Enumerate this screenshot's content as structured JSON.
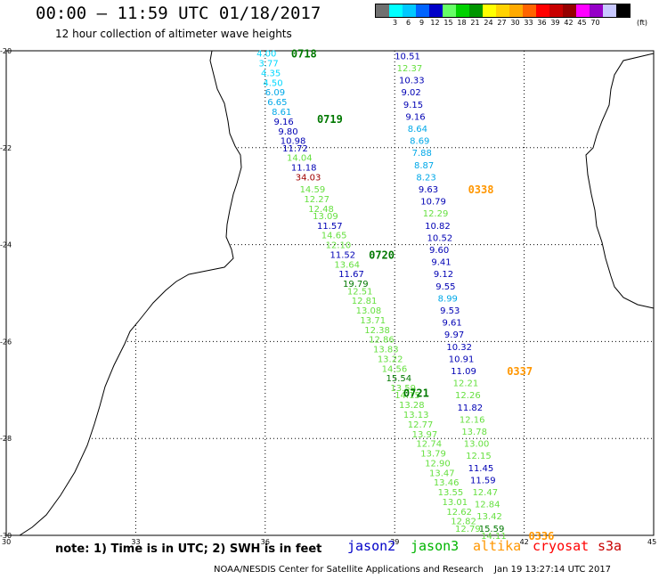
{
  "header": {
    "title": "00:00 — 11:59 UTC 01/18/2017",
    "subtitle": "12 hour collection of altimeter wave heights"
  },
  "colorbar": {
    "colors": [
      "#707070",
      "#00ffff",
      "#00c8ff",
      "#0064ff",
      "#0000c8",
      "#66ff66",
      "#00d200",
      "#009600",
      "#ffff00",
      "#ffd200",
      "#ffaa00",
      "#ff6400",
      "#ff0000",
      "#c80000",
      "#960000",
      "#ff00ff",
      "#9600c8",
      "#c8c8ff",
      "#000000"
    ],
    "labels": [
      "3",
      "6",
      "9",
      "12",
      "15",
      "18",
      "21",
      "24",
      "27",
      "30",
      "33",
      "36",
      "39",
      "42",
      "45",
      "70"
    ],
    "unit": "(ft)"
  },
  "map": {
    "y_labels": [
      "-20",
      "-22",
      "-24",
      "-26",
      "-28",
      "-30"
    ],
    "x_labels": [
      "30",
      "33",
      "36",
      "39",
      "42",
      "45"
    ]
  },
  "chart_data": {
    "type": "scatter",
    "title": "00:00 — 11:59 UTC 01/18/2017",
    "subtitle": "12 hour collection of altimeter wave heights",
    "xlabel": "",
    "ylabel": "",
    "xlim": [
      30,
      45
    ],
    "ylim": [
      -30,
      -20
    ],
    "unit": "ft",
    "colors": {
      "cyan": "#00d8ff",
      "sky": "#00a8e8",
      "navy": "#0000b4",
      "lime": "#66e040",
      "darkred": "#a00000",
      "time_green": "#007800",
      "time_orange": "#ff9600"
    },
    "track_jason3": {
      "name": "jason3",
      "points": [
        {
          "lon": 35.8,
          "lat": -20.05,
          "v": "4.00",
          "c": "cyan"
        },
        {
          "lon": 35.85,
          "lat": -20.25,
          "v": "3.77",
          "c": "cyan"
        },
        {
          "lon": 35.9,
          "lat": -20.45,
          "v": "4.35",
          "c": "cyan"
        },
        {
          "lon": 35.95,
          "lat": -20.65,
          "v": "4.50",
          "c": "cyan"
        },
        {
          "lon": 36.0,
          "lat": -20.85,
          "v": "6.09",
          "c": "sky"
        },
        {
          "lon": 36.05,
          "lat": -21.05,
          "v": "6.65",
          "c": "sky"
        },
        {
          "lon": 36.15,
          "lat": -21.25,
          "v": "8.61",
          "c": "sky"
        },
        {
          "lon": 36.2,
          "lat": -21.45,
          "v": "9.16",
          "c": "navy"
        },
        {
          "lon": 36.3,
          "lat": -21.65,
          "v": "9.80",
          "c": "navy"
        },
        {
          "lon": 36.35,
          "lat": -21.85,
          "v": "10.98",
          "c": "navy"
        },
        {
          "lon": 36.4,
          "lat": -22.0,
          "v": "11.72",
          "c": "navy"
        },
        {
          "lon": 36.5,
          "lat": -22.2,
          "v": "14.04",
          "c": "lime"
        },
        {
          "lon": 36.6,
          "lat": -22.4,
          "v": "11.18",
          "c": "navy"
        },
        {
          "lon": 36.7,
          "lat": -22.6,
          "v": "34.03",
          "c": "darkred"
        },
        {
          "lon": 36.8,
          "lat": -22.85,
          "v": "14.59",
          "c": "lime"
        },
        {
          "lon": 36.9,
          "lat": -23.05,
          "v": "12.27",
          "c": "lime"
        },
        {
          "lon": 37.0,
          "lat": -23.25,
          "v": "12.48",
          "c": "lime"
        },
        {
          "lon": 37.1,
          "lat": -23.4,
          "v": "13.09",
          "c": "lime"
        },
        {
          "lon": 37.2,
          "lat": -23.6,
          "v": "11.57",
          "c": "navy"
        },
        {
          "lon": 37.3,
          "lat": -23.8,
          "v": "14.65",
          "c": "lime"
        },
        {
          "lon": 37.4,
          "lat": -24.0,
          "v": "12.10",
          "c": "lime"
        },
        {
          "lon": 37.5,
          "lat": -24.2,
          "v": "11.52",
          "c": "navy"
        },
        {
          "lon": 37.6,
          "lat": -24.4,
          "v": "13.64",
          "c": "lime"
        },
        {
          "lon": 37.7,
          "lat": -24.6,
          "v": "11.67",
          "c": "navy"
        },
        {
          "lon": 37.8,
          "lat": -24.8,
          "v": "19.79",
          "c": "time_green"
        },
        {
          "lon": 37.9,
          "lat": -24.95,
          "v": "12.51",
          "c": "lime"
        },
        {
          "lon": 38.0,
          "lat": -25.15,
          "v": "12.81",
          "c": "lime"
        },
        {
          "lon": 38.1,
          "lat": -25.35,
          "v": "13.08",
          "c": "lime"
        },
        {
          "lon": 38.2,
          "lat": -25.55,
          "v": "13.71",
          "c": "lime"
        },
        {
          "lon": 38.3,
          "lat": -25.75,
          "v": "12.38",
          "c": "lime"
        },
        {
          "lon": 38.4,
          "lat": -25.95,
          "v": "12.86",
          "c": "lime"
        },
        {
          "lon": 38.5,
          "lat": -26.15,
          "v": "13.83",
          "c": "lime"
        },
        {
          "lon": 38.6,
          "lat": -26.35,
          "v": "13.22",
          "c": "lime"
        },
        {
          "lon": 38.7,
          "lat": -26.55,
          "v": "14.56",
          "c": "lime"
        },
        {
          "lon": 38.8,
          "lat": -26.75,
          "v": "15.54",
          "c": "time_green"
        },
        {
          "lon": 38.9,
          "lat": -26.95,
          "v": "13.59",
          "c": "lime"
        },
        {
          "lon": 39.0,
          "lat": -27.1,
          "v": "14.15",
          "c": "lime"
        },
        {
          "lon": 39.1,
          "lat": -27.3,
          "v": "13.28",
          "c": "lime"
        },
        {
          "lon": 39.2,
          "lat": -27.5,
          "v": "13.13",
          "c": "lime"
        },
        {
          "lon": 39.3,
          "lat": -27.7,
          "v": "12.77",
          "c": "lime"
        },
        {
          "lon": 39.4,
          "lat": -27.9,
          "v": "13.97",
          "c": "lime"
        },
        {
          "lon": 39.5,
          "lat": -28.1,
          "v": "12.74",
          "c": "lime"
        },
        {
          "lon": 39.6,
          "lat": -28.3,
          "v": "13.79",
          "c": "lime"
        },
        {
          "lon": 39.7,
          "lat": -28.5,
          "v": "12.90",
          "c": "lime"
        },
        {
          "lon": 39.8,
          "lat": -28.7,
          "v": "13.47",
          "c": "lime"
        },
        {
          "lon": 39.9,
          "lat": -28.9,
          "v": "13.46",
          "c": "lime"
        },
        {
          "lon": 40.0,
          "lat": -29.1,
          "v": "13.55",
          "c": "lime"
        },
        {
          "lon": 40.1,
          "lat": -29.3,
          "v": "13.01",
          "c": "lime"
        },
        {
          "lon": 40.2,
          "lat": -29.5,
          "v": "12.62",
          "c": "lime"
        },
        {
          "lon": 40.3,
          "lat": -29.7,
          "v": "12.82",
          "c": "lime"
        },
        {
          "lon": 40.4,
          "lat": -29.85,
          "v": "12.79",
          "c": "lime"
        }
      ],
      "times": [
        {
          "lon": 36.6,
          "lat": -20.05,
          "t": "0718"
        },
        {
          "lon": 37.2,
          "lat": -21.4,
          "t": "0719"
        },
        {
          "lon": 38.4,
          "lat": -24.2,
          "t": "0720"
        },
        {
          "lon": 39.2,
          "lat": -27.05,
          "t": "0721"
        }
      ]
    },
    "track_jason2": {
      "name": "jason2",
      "points": [
        {
          "lon": 39.0,
          "lat": -20.1,
          "v": "10.51",
          "c": "navy"
        },
        {
          "lon": 39.05,
          "lat": -20.35,
          "v": "12.37",
          "c": "lime"
        },
        {
          "lon": 39.1,
          "lat": -20.6,
          "v": "10.33",
          "c": "navy"
        },
        {
          "lon": 39.15,
          "lat": -20.85,
          "v": "9.02",
          "c": "navy"
        },
        {
          "lon": 39.2,
          "lat": -21.1,
          "v": "9.15",
          "c": "navy"
        },
        {
          "lon": 39.25,
          "lat": -21.35,
          "v": "9.16",
          "c": "navy"
        },
        {
          "lon": 39.3,
          "lat": -21.6,
          "v": "8.64",
          "c": "sky"
        },
        {
          "lon": 39.35,
          "lat": -21.85,
          "v": "8.69",
          "c": "sky"
        },
        {
          "lon": 39.4,
          "lat": -22.1,
          "v": "7.88",
          "c": "sky"
        },
        {
          "lon": 39.45,
          "lat": -22.35,
          "v": "8.87",
          "c": "sky"
        },
        {
          "lon": 39.5,
          "lat": -22.6,
          "v": "8.23",
          "c": "sky"
        },
        {
          "lon": 39.55,
          "lat": -22.85,
          "v": "9.63",
          "c": "navy"
        },
        {
          "lon": 39.6,
          "lat": -23.1,
          "v": "10.79",
          "c": "navy"
        },
        {
          "lon": 39.65,
          "lat": -23.35,
          "v": "12.29",
          "c": "lime"
        },
        {
          "lon": 39.7,
          "lat": -23.6,
          "v": "10.82",
          "c": "navy"
        },
        {
          "lon": 39.75,
          "lat": -23.85,
          "v": "10.52",
          "c": "navy"
        },
        {
          "lon": 39.8,
          "lat": -24.1,
          "v": "9.60",
          "c": "navy"
        },
        {
          "lon": 39.85,
          "lat": -24.35,
          "v": "9.41",
          "c": "navy"
        },
        {
          "lon": 39.9,
          "lat": -24.6,
          "v": "9.12",
          "c": "navy"
        },
        {
          "lon": 39.95,
          "lat": -24.85,
          "v": "9.55",
          "c": "navy"
        },
        {
          "lon": 40.0,
          "lat": -25.1,
          "v": "8.99",
          "c": "sky"
        },
        {
          "lon": 40.05,
          "lat": -25.35,
          "v": "9.53",
          "c": "navy"
        },
        {
          "lon": 40.1,
          "lat": -25.6,
          "v": "9.61",
          "c": "navy"
        },
        {
          "lon": 40.15,
          "lat": -25.85,
          "v": "9.97",
          "c": "navy"
        },
        {
          "lon": 40.2,
          "lat": -26.1,
          "v": "10.32",
          "c": "navy"
        },
        {
          "lon": 40.25,
          "lat": -26.35,
          "v": "10.91",
          "c": "navy"
        },
        {
          "lon": 40.3,
          "lat": -26.6,
          "v": "11.09",
          "c": "navy"
        },
        {
          "lon": 40.35,
          "lat": -26.85,
          "v": "12.21",
          "c": "lime"
        },
        {
          "lon": 40.4,
          "lat": -27.1,
          "v": "12.26",
          "c": "lime"
        },
        {
          "lon": 40.45,
          "lat": -27.35,
          "v": "11.82",
          "c": "navy"
        },
        {
          "lon": 40.5,
          "lat": -27.6,
          "v": "12.16",
          "c": "lime"
        },
        {
          "lon": 40.55,
          "lat": -27.85,
          "v": "13.78",
          "c": "lime"
        },
        {
          "lon": 40.6,
          "lat": -28.1,
          "v": "13.00",
          "c": "lime"
        },
        {
          "lon": 40.65,
          "lat": -28.35,
          "v": "12.15",
          "c": "lime"
        },
        {
          "lon": 40.7,
          "lat": -28.6,
          "v": "11.45",
          "c": "navy"
        },
        {
          "lon": 40.75,
          "lat": -28.85,
          "v": "11.59",
          "c": "navy"
        },
        {
          "lon": 40.8,
          "lat": -29.1,
          "v": "12.47",
          "c": "lime"
        },
        {
          "lon": 40.85,
          "lat": -29.35,
          "v": "12.84",
          "c": "lime"
        },
        {
          "lon": 40.9,
          "lat": -29.6,
          "v": "13.42",
          "c": "lime"
        },
        {
          "lon": 40.95,
          "lat": -29.85,
          "v": "15.59",
          "c": "time_green"
        },
        {
          "lon": 41.0,
          "lat": -30.0,
          "v": "14.11",
          "c": "lime"
        }
      ],
      "times": [
        {
          "lon": 40.7,
          "lat": -22.85,
          "t": "0338"
        },
        {
          "lon": 41.6,
          "lat": -26.6,
          "t": "0337"
        },
        {
          "lon": 42.1,
          "lat": -30.0,
          "t": "0336"
        }
      ]
    }
  },
  "footer": {
    "note": "note: 1) Time is in UTC; 2) SWH is in feet",
    "legend": [
      {
        "label": "jason2",
        "color": "#0000c8"
      },
      {
        "label": "jason3",
        "color": "#00b400"
      },
      {
        "label": "altika",
        "color": "#ff9600"
      },
      {
        "label": "cryosat",
        "color": "#ff0000"
      },
      {
        "label": "s3a",
        "color": "#c80000"
      }
    ],
    "credit": "NOAA/NESDIS Center for Satellite Applications and Research",
    "stamp": "Jan 19 13:27:14 UTC 2017"
  }
}
